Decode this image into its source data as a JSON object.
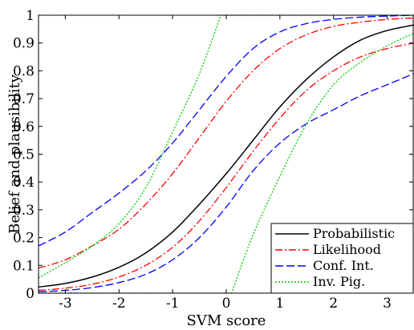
{
  "chart_data": {
    "type": "line",
    "xlabel": "SVM score",
    "ylabel": "Belief and plausibility",
    "xlim": [
      -3.5,
      3.5
    ],
    "ylim": [
      0,
      1
    ],
    "xticks": [
      -3,
      -2,
      -1,
      0,
      1,
      2,
      3
    ],
    "xtick_labels": [
      "-3",
      "-2",
      "-1",
      "0",
      "1",
      "2",
      "3"
    ],
    "yticks": [
      0,
      0.1,
      0.2,
      0.3,
      0.4,
      0.5,
      0.6,
      0.7,
      0.8,
      0.9,
      1
    ],
    "ytick_labels": [
      "0",
      "0.1",
      "0.2",
      "0.3",
      "0.4",
      "0.5",
      "0.6",
      "0.7",
      "0.8",
      "0.9",
      "1"
    ],
    "grid": false,
    "legend_position": "bottom-right",
    "x": [
      -3.5,
      -3,
      -2.5,
      -2,
      -1.5,
      -1,
      -0.5,
      0,
      0.5,
      1,
      1.5,
      2,
      2.5,
      3,
      3.5
    ],
    "series": [
      {
        "name": "Probabilistic",
        "color": "#000000",
        "dash": "solid",
        "values": [
          0.022,
          0.035,
          0.058,
          0.093,
          0.145,
          0.22,
          0.32,
          0.43,
          0.55,
          0.67,
          0.77,
          0.85,
          0.91,
          0.945,
          0.965
        ]
      },
      {
        "name": "Likelihood",
        "color": "#ff0000",
        "dash": "dash-dot",
        "group": "lower",
        "values": [
          0.01,
          0.018,
          0.032,
          0.058,
          0.1,
          0.165,
          0.26,
          0.38,
          0.51,
          0.63,
          0.73,
          0.8,
          0.85,
          0.88,
          0.9
        ]
      },
      {
        "name": "Likelihood",
        "color": "#ff0000",
        "dash": "dash-dot",
        "group": "upper",
        "values": [
          0.09,
          0.12,
          0.17,
          0.23,
          0.32,
          0.43,
          0.56,
          0.69,
          0.8,
          0.88,
          0.93,
          0.96,
          0.975,
          0.985,
          0.99
        ]
      },
      {
        "name": "Conf. Int.",
        "color": "#0000ff",
        "dash": "dashed",
        "group": "lower",
        "values": [
          0.005,
          0.01,
          0.02,
          0.038,
          0.068,
          0.12,
          0.2,
          0.31,
          0.44,
          0.54,
          0.61,
          0.66,
          0.71,
          0.75,
          0.79
        ]
      },
      {
        "name": "Conf. Int.",
        "color": "#0000ff",
        "dash": "dashed",
        "group": "upper",
        "values": [
          0.17,
          0.22,
          0.29,
          0.36,
          0.44,
          0.54,
          0.66,
          0.78,
          0.88,
          0.94,
          0.97,
          0.985,
          0.993,
          0.997,
          1.0
        ]
      },
      {
        "name": "Inv. Pig.",
        "color": "#00cc00",
        "dash": "dotted",
        "group": "lower",
        "x": [
          -3.5,
          0.1,
          0.5,
          1,
          1.5,
          2,
          2.5,
          3,
          3.5
        ],
        "values": [
          0,
          0,
          0.21,
          0.42,
          0.61,
          0.75,
          0.83,
          0.89,
          0.935
        ]
      },
      {
        "name": "Inv. Pig.",
        "color": "#00cc00",
        "dash": "dotted",
        "group": "upper",
        "x": [
          -3.5,
          -3,
          -2.5,
          -2,
          -1.5,
          -1,
          -0.5,
          -0.1,
          3.5
        ],
        "values": [
          0.055,
          0.11,
          0.17,
          0.25,
          0.38,
          0.58,
          0.79,
          1.0,
          1.0
        ]
      }
    ],
    "legend": [
      {
        "name": "Probabilistic",
        "color": "#000000",
        "dash": "solid"
      },
      {
        "name": "Likelihood",
        "color": "#ff0000",
        "dash": "dash-dot"
      },
      {
        "name": "Conf. Int.",
        "color": "#0000ff",
        "dash": "dashed"
      },
      {
        "name": "Inv. Pig.",
        "color": "#00cc00",
        "dash": "dotted"
      }
    ]
  }
}
